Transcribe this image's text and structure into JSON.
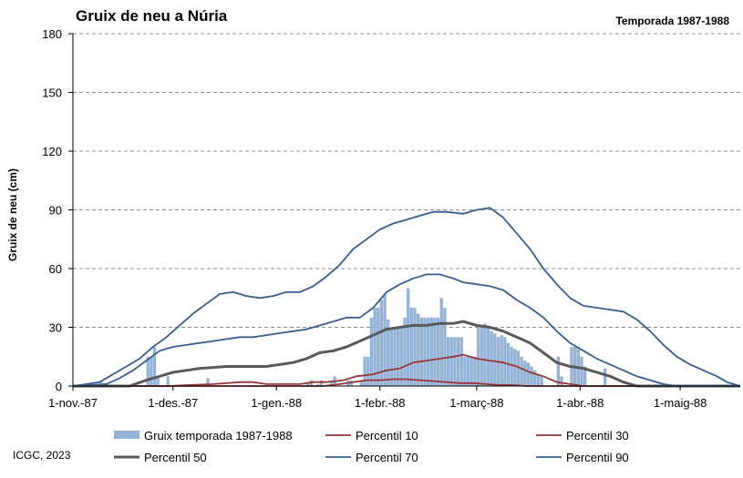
{
  "chart_data": {
    "type": "bar+line",
    "title": "Gruix de neu a Núria",
    "subtitle": "Temporada 1987-1988",
    "ylabel": "Gruix de neu (cm)",
    "xlabel": "",
    "ylim": [
      0,
      180
    ],
    "yticks": [
      "0",
      "30",
      "60",
      "90",
      "120",
      "150",
      "180"
    ],
    "xticks": [
      {
        "label": "1-nov.-87",
        "day": 0
      },
      {
        "label": "1-des.-87",
        "day": 30
      },
      {
        "label": "1-gen.-88",
        "day": 61
      },
      {
        "label": "1-febr.-88",
        "day": 92
      },
      {
        "label": "1-març-88",
        "day": 121
      },
      {
        "label": "1-abr.-88",
        "day": 152
      },
      {
        "label": "1-maig-88",
        "day": 182
      }
    ],
    "x_range": [
      0,
      200
    ],
    "grid": "horizontal dashed",
    "bar_series": {
      "name": "Gruix temporada 1987-1988",
      "color": "#95b3d7",
      "points": [
        [
          8,
          2
        ],
        [
          22,
          15
        ],
        [
          23,
          15
        ],
        [
          24,
          20
        ],
        [
          25,
          5
        ],
        [
          28,
          5
        ],
        [
          40,
          4
        ],
        [
          70,
          2
        ],
        [
          71,
          3
        ],
        [
          73,
          1
        ],
        [
          74,
          3
        ],
        [
          77,
          2
        ],
        [
          78,
          5
        ],
        [
          82,
          3
        ],
        [
          83,
          3
        ],
        [
          86,
          3
        ],
        [
          87,
          15
        ],
        [
          88,
          15
        ],
        [
          89,
          35
        ],
        [
          90,
          40
        ],
        [
          91,
          40
        ],
        [
          92,
          44
        ],
        [
          93,
          47
        ],
        [
          94,
          34
        ],
        [
          95,
          30
        ],
        [
          96,
          30
        ],
        [
          97,
          30
        ],
        [
          98,
          30
        ],
        [
          99,
          35
        ],
        [
          100,
          50
        ],
        [
          101,
          40
        ],
        [
          102,
          40
        ],
        [
          103,
          37
        ],
        [
          104,
          35
        ],
        [
          105,
          35
        ],
        [
          106,
          35
        ],
        [
          107,
          35
        ],
        [
          108,
          35
        ],
        [
          109,
          35
        ],
        [
          110,
          45
        ],
        [
          111,
          40
        ],
        [
          112,
          25
        ],
        [
          113,
          25
        ],
        [
          114,
          25
        ],
        [
          115,
          25
        ],
        [
          116,
          25
        ],
        [
          117,
          15
        ],
        [
          118,
          15
        ],
        [
          119,
          15
        ],
        [
          120,
          15
        ],
        [
          121,
          30
        ],
        [
          122,
          30
        ],
        [
          123,
          32
        ],
        [
          124,
          30
        ],
        [
          125,
          28
        ],
        [
          126,
          27
        ],
        [
          127,
          25
        ],
        [
          128,
          26
        ],
        [
          129,
          25
        ],
        [
          130,
          22
        ],
        [
          131,
          20
        ],
        [
          132,
          19
        ],
        [
          133,
          18
        ],
        [
          134,
          15
        ],
        [
          135,
          13
        ],
        [
          136,
          12
        ],
        [
          137,
          10
        ],
        [
          138,
          8
        ],
        [
          139,
          6
        ],
        [
          140,
          5
        ],
        [
          145,
          15
        ],
        [
          146,
          5
        ],
        [
          149,
          20
        ],
        [
          150,
          20
        ],
        [
          151,
          20
        ],
        [
          152,
          15
        ],
        [
          153,
          10
        ],
        [
          159,
          9
        ]
      ]
    },
    "series": [
      {
        "name": "Percentil 10",
        "color": "#953735",
        "width": 1.8,
        "points": [
          [
            0,
            0
          ],
          [
            28,
            0
          ],
          [
            35,
            0.5
          ],
          [
            42,
            1
          ],
          [
            50,
            2
          ],
          [
            54,
            2
          ],
          [
            58,
            1
          ],
          [
            62,
            1
          ],
          [
            68,
            1
          ],
          [
            72,
            2
          ],
          [
            76,
            2
          ],
          [
            81,
            3
          ],
          [
            85,
            5
          ],
          [
            90,
            6
          ],
          [
            94,
            8
          ],
          [
            98,
            9
          ],
          [
            102,
            12
          ],
          [
            106,
            13
          ],
          [
            110,
            14
          ],
          [
            114,
            15
          ],
          [
            117,
            16
          ],
          [
            121,
            14
          ],
          [
            125,
            13
          ],
          [
            129,
            12
          ],
          [
            133,
            10
          ],
          [
            137,
            7
          ],
          [
            141,
            5
          ],
          [
            145,
            2
          ],
          [
            149,
            1
          ],
          [
            153,
            0
          ],
          [
            200,
            0
          ]
        ]
      },
      {
        "name": "Percentil 30",
        "color": "#953735",
        "width": 1.8,
        "points": [
          [
            0,
            0
          ],
          [
            45,
            0
          ],
          [
            60,
            0
          ],
          [
            70,
            0
          ],
          [
            75,
            0
          ],
          [
            80,
            1
          ],
          [
            84,
            2
          ],
          [
            88,
            3
          ],
          [
            92,
            3
          ],
          [
            96,
            3.5
          ],
          [
            100,
            3.5
          ],
          [
            104,
            3
          ],
          [
            108,
            2.5
          ],
          [
            112,
            2
          ],
          [
            116,
            1.5
          ],
          [
            120,
            1.5
          ],
          [
            124,
            1
          ],
          [
            128,
            0.5
          ],
          [
            132,
            0.5
          ],
          [
            136,
            0
          ],
          [
            200,
            0
          ]
        ]
      },
      {
        "name": "Percentil 50",
        "color": "#595959",
        "width": 3,
        "points": [
          [
            0,
            0
          ],
          [
            17,
            0
          ],
          [
            22,
            3
          ],
          [
            26,
            5
          ],
          [
            30,
            7
          ],
          [
            34,
            8
          ],
          [
            38,
            9
          ],
          [
            42,
            9.5
          ],
          [
            46,
            10
          ],
          [
            50,
            10
          ],
          [
            54,
            10
          ],
          [
            58,
            10
          ],
          [
            62,
            11
          ],
          [
            66,
            12
          ],
          [
            70,
            14
          ],
          [
            74,
            17
          ],
          [
            78,
            18
          ],
          [
            82,
            20
          ],
          [
            86,
            23
          ],
          [
            90,
            26
          ],
          [
            94,
            29
          ],
          [
            98,
            30
          ],
          [
            102,
            31
          ],
          [
            106,
            31
          ],
          [
            110,
            32
          ],
          [
            114,
            32
          ],
          [
            117,
            33
          ],
          [
            121,
            31
          ],
          [
            125,
            30
          ],
          [
            129,
            28
          ],
          [
            133,
            25
          ],
          [
            137,
            22
          ],
          [
            141,
            17
          ],
          [
            145,
            12
          ],
          [
            149,
            10
          ],
          [
            153,
            9
          ],
          [
            157,
            7
          ],
          [
            161,
            5
          ],
          [
            165,
            2
          ],
          [
            169,
            0
          ],
          [
            200,
            0
          ]
        ]
      },
      {
        "name": "Percentil 70",
        "color": "#366092",
        "width": 1.8,
        "points": [
          [
            0,
            0
          ],
          [
            10,
            1
          ],
          [
            14,
            4
          ],
          [
            18,
            8
          ],
          [
            22,
            13
          ],
          [
            26,
            18
          ],
          [
            30,
            20
          ],
          [
            34,
            21
          ],
          [
            38,
            22
          ],
          [
            42,
            23
          ],
          [
            46,
            24
          ],
          [
            50,
            25
          ],
          [
            54,
            25
          ],
          [
            58,
            26
          ],
          [
            62,
            27
          ],
          [
            66,
            28
          ],
          [
            70,
            29
          ],
          [
            74,
            31
          ],
          [
            78,
            33
          ],
          [
            82,
            35
          ],
          [
            86,
            35
          ],
          [
            90,
            40
          ],
          [
            94,
            48
          ],
          [
            98,
            52
          ],
          [
            102,
            55
          ],
          [
            106,
            57
          ],
          [
            110,
            57
          ],
          [
            114,
            55
          ],
          [
            117,
            53
          ],
          [
            121,
            52
          ],
          [
            125,
            51
          ],
          [
            129,
            49
          ],
          [
            133,
            44
          ],
          [
            137,
            40
          ],
          [
            141,
            35
          ],
          [
            145,
            28
          ],
          [
            149,
            22
          ],
          [
            153,
            18
          ],
          [
            157,
            14
          ],
          [
            161,
            11
          ],
          [
            165,
            8
          ],
          [
            169,
            5
          ],
          [
            173,
            3
          ],
          [
            177,
            1
          ],
          [
            181,
            0
          ],
          [
            200,
            0
          ]
        ]
      },
      {
        "name": "Percentil 90",
        "color": "#366092",
        "width": 1.8,
        "points": [
          [
            0,
            0
          ],
          [
            4,
            1
          ],
          [
            8,
            2
          ],
          [
            12,
            6
          ],
          [
            16,
            10
          ],
          [
            20,
            14
          ],
          [
            24,
            20
          ],
          [
            28,
            25
          ],
          [
            32,
            31
          ],
          [
            36,
            37
          ],
          [
            40,
            42
          ],
          [
            44,
            47
          ],
          [
            48,
            48
          ],
          [
            52,
            46
          ],
          [
            56,
            45
          ],
          [
            60,
            46
          ],
          [
            64,
            48
          ],
          [
            68,
            48
          ],
          [
            72,
            51
          ],
          [
            76,
            56
          ],
          [
            80,
            62
          ],
          [
            84,
            70
          ],
          [
            88,
            75
          ],
          [
            92,
            80
          ],
          [
            96,
            83
          ],
          [
            100,
            85
          ],
          [
            104,
            87
          ],
          [
            108,
            89
          ],
          [
            112,
            89
          ],
          [
            117,
            88
          ],
          [
            121,
            90
          ],
          [
            125,
            91
          ],
          [
            129,
            86
          ],
          [
            133,
            78
          ],
          [
            137,
            70
          ],
          [
            141,
            60
          ],
          [
            145,
            52
          ],
          [
            149,
            45
          ],
          [
            153,
            41
          ],
          [
            157,
            40
          ],
          [
            161,
            39
          ],
          [
            165,
            38
          ],
          [
            169,
            34
          ],
          [
            173,
            28
          ],
          [
            177,
            21
          ],
          [
            181,
            15
          ],
          [
            185,
            11
          ],
          [
            189,
            8
          ],
          [
            193,
            5
          ],
          [
            196,
            2
          ],
          [
            200,
            0
          ]
        ]
      }
    ],
    "legend_placement": "bottom"
  },
  "credit": "ICGC, 2023"
}
